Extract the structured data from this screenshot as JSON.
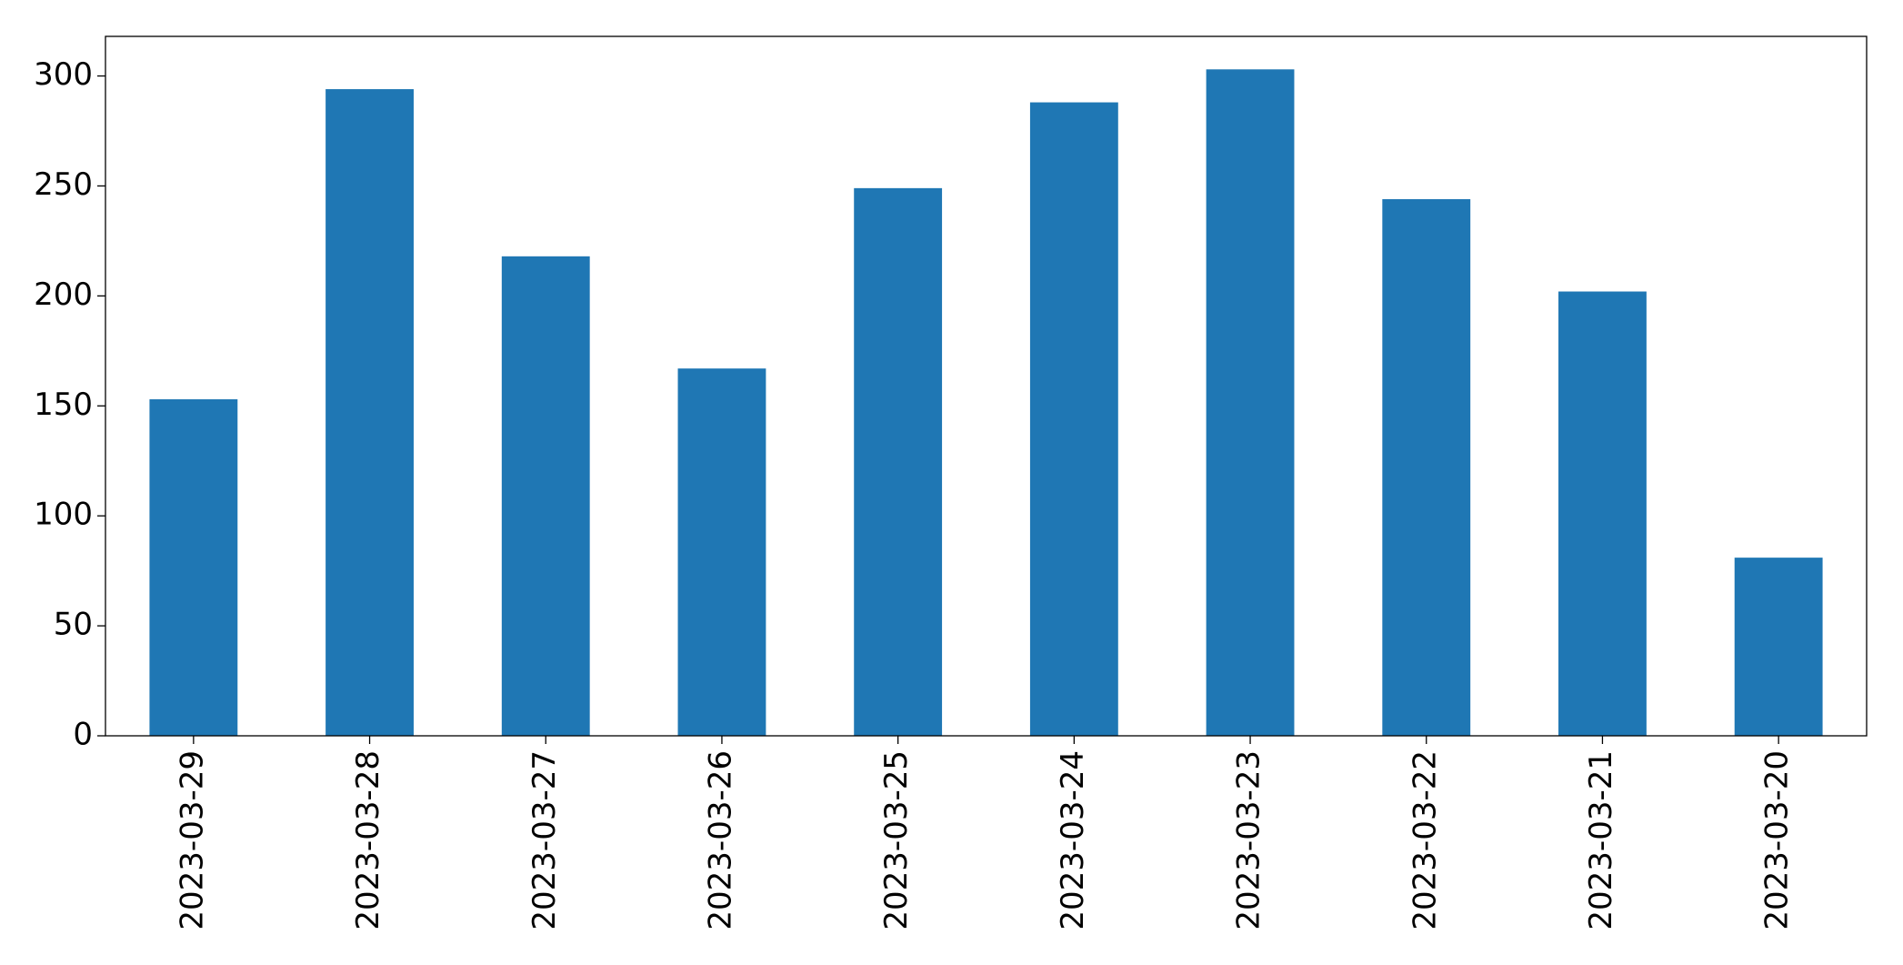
{
  "chart_data": {
    "type": "bar",
    "categories": [
      "2023-03-29",
      "2023-03-28",
      "2023-03-27",
      "2023-03-26",
      "2023-03-25",
      "2023-03-24",
      "2023-03-23",
      "2023-03-22",
      "2023-03-21",
      "2023-03-20"
    ],
    "values": [
      153,
      294,
      218,
      167,
      249,
      288,
      303,
      244,
      202,
      81
    ],
    "color": "#1f77b4",
    "ylim": [
      0,
      318
    ],
    "yticks": [
      0,
      50,
      100,
      150,
      200,
      250,
      300
    ],
    "grid": false
  }
}
